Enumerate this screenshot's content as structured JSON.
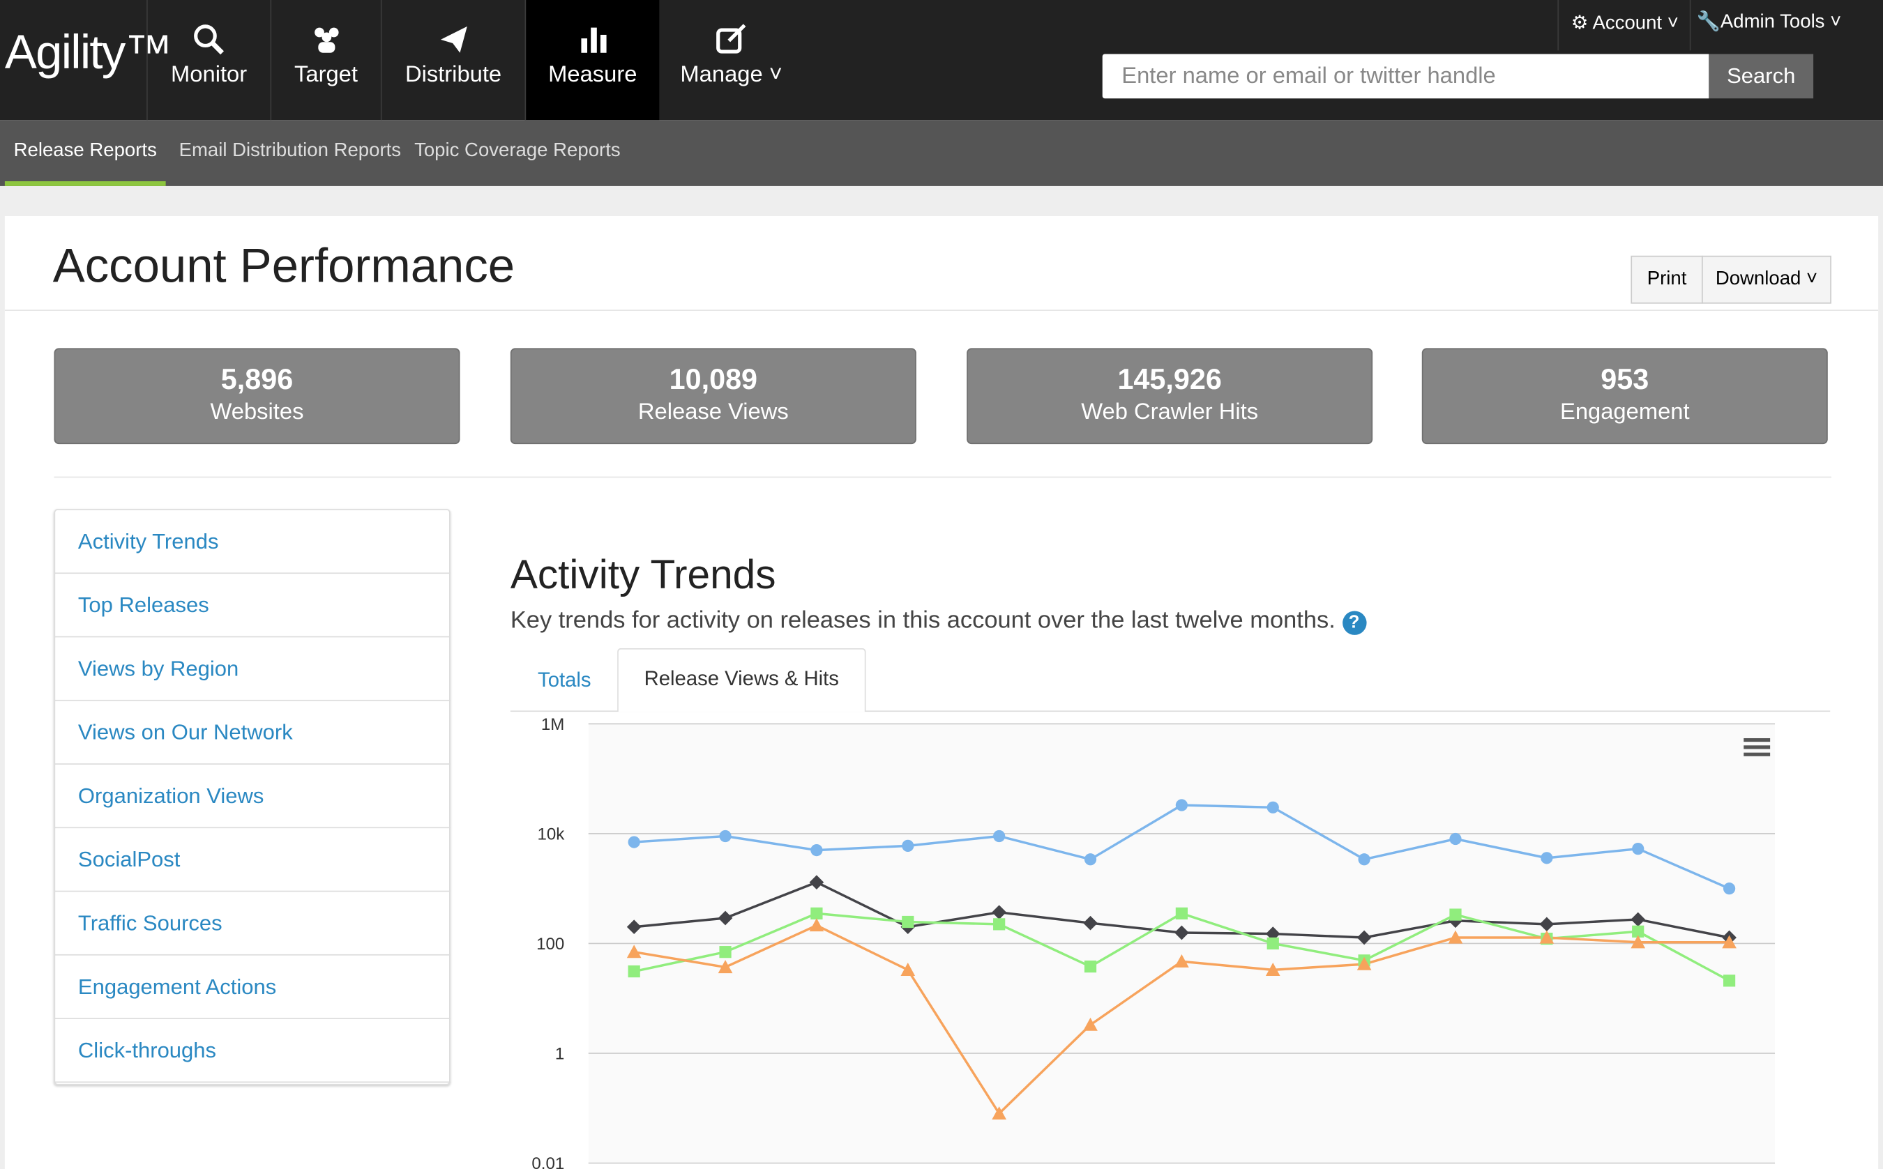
{
  "nav": {
    "logo": "Agility™",
    "items": [
      "Monitor",
      "Target",
      "Distribute",
      "Measure",
      "Manage"
    ],
    "account": "Account",
    "admin_tools": "Admin Tools",
    "search_placeholder": "Enter name or email or twitter handle",
    "search_button": "Search"
  },
  "subnav": [
    "Release Reports",
    "Email Distribution Reports",
    "Topic Coverage Reports"
  ],
  "header": {
    "title": "Account Performance",
    "print": "Print",
    "download": "Download"
  },
  "stats": [
    {
      "value": "5,896",
      "label": "Websites"
    },
    {
      "value": "10,089",
      "label": "Release Views"
    },
    {
      "value": "145,926",
      "label": "Web Crawler Hits"
    },
    {
      "value": "953",
      "label": "Engagement"
    }
  ],
  "sidebar": [
    "Activity Trends",
    "Top Releases",
    "Views by Region",
    "Views on Our Network",
    "Organization Views",
    "SocialPost",
    "Traffic Sources",
    "Engagement Actions",
    "Click-throughs"
  ],
  "section": {
    "title": "Activity Trends",
    "subtitle": "Key trends for activity on releases in this account over the last twelve months.",
    "tabs": [
      "Totals",
      "Release Views & Hits"
    ]
  },
  "chart_data": {
    "type": "line",
    "log_scale": true,
    "grid": true,
    "ylim": [
      0.01,
      1000000
    ],
    "yticks": [
      {
        "value": 1000000,
        "label": "1M"
      },
      {
        "value": 10000,
        "label": "10k"
      },
      100,
      1,
      0.01
    ],
    "categories": [
      null,
      null,
      null,
      null,
      null,
      null,
      null,
      null,
      null,
      null,
      null,
      null,
      null
    ],
    "series": [
      {
        "color": "#7cb5ec",
        "marker": "circle",
        "values": [
          7000,
          9000,
          5000,
          6000,
          9000,
          3400,
          33000,
          30000,
          3400,
          8000,
          3600,
          5300,
          1000
        ]
      },
      {
        "color": "#434348",
        "marker": "diamond",
        "values": [
          200,
          290,
          1300,
          200,
          370,
          235,
          157,
          150,
          128,
          260,
          224,
          274,
          128
        ]
      },
      {
        "color": "#90ed7d",
        "marker": "square",
        "values": [
          31,
          70,
          352,
          247,
          224,
          38,
          352,
          100,
          49,
          335,
          122,
          165,
          21
        ]
      },
      {
        "color": "#f7a35c",
        "marker": "triangle",
        "values": [
          70,
          37,
          213,
          33,
          0.08,
          3.3,
          47,
          33,
          42,
          128,
          128,
          105,
          105
        ]
      }
    ]
  }
}
